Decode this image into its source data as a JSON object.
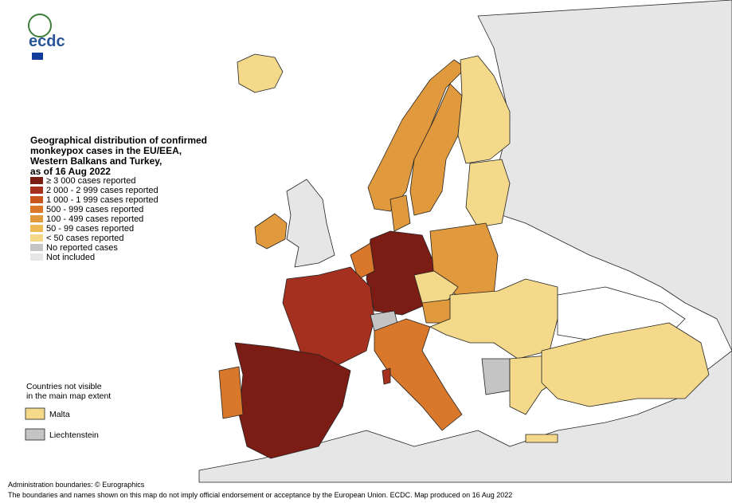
{
  "logo": "ecdc",
  "title": [
    "Geographical distribution of confirmed",
    "monkeypox cases in the EU/EEA,",
    "Western Balkans and Turkey,",
    "as of 16 Aug 2022"
  ],
  "legend": [
    {
      "label": "≥ 3 000 cases reported",
      "color": "#7b1d14"
    },
    {
      "label": "2 000 - 2 999 cases reported",
      "color": "#a63020"
    },
    {
      "label": "1 000 - 1 999 cases reported",
      "color": "#c9561f"
    },
    {
      "label": "500 - 999 cases reported",
      "color": "#d9782a"
    },
    {
      "label": "100 - 499 cases reported",
      "color": "#e0993c"
    },
    {
      "label": "50 - 99 cases reported",
      "color": "#efb955"
    },
    {
      "label": "< 50 cases reported",
      "color": "#f4d98a"
    },
    {
      "label": "No reported cases",
      "color": "#c4c4c4"
    },
    {
      "label": "Not included",
      "color": "#e6e6e6"
    }
  ],
  "inset": {
    "heading": [
      "Countries not visible",
      "in the main map extent"
    ],
    "items": [
      {
        "label": "Malta",
        "color": "#f4d98a"
      },
      {
        "label": "Liechtenstein",
        "color": "#c4c4c4"
      }
    ]
  },
  "footer": [
    "Administration boundaries: © Eurographics",
    "The boundaries and names shown on this map do not imply official endorsement or acceptance by the European Union. ECDC. Map produced on 16 Aug 2022"
  ]
}
